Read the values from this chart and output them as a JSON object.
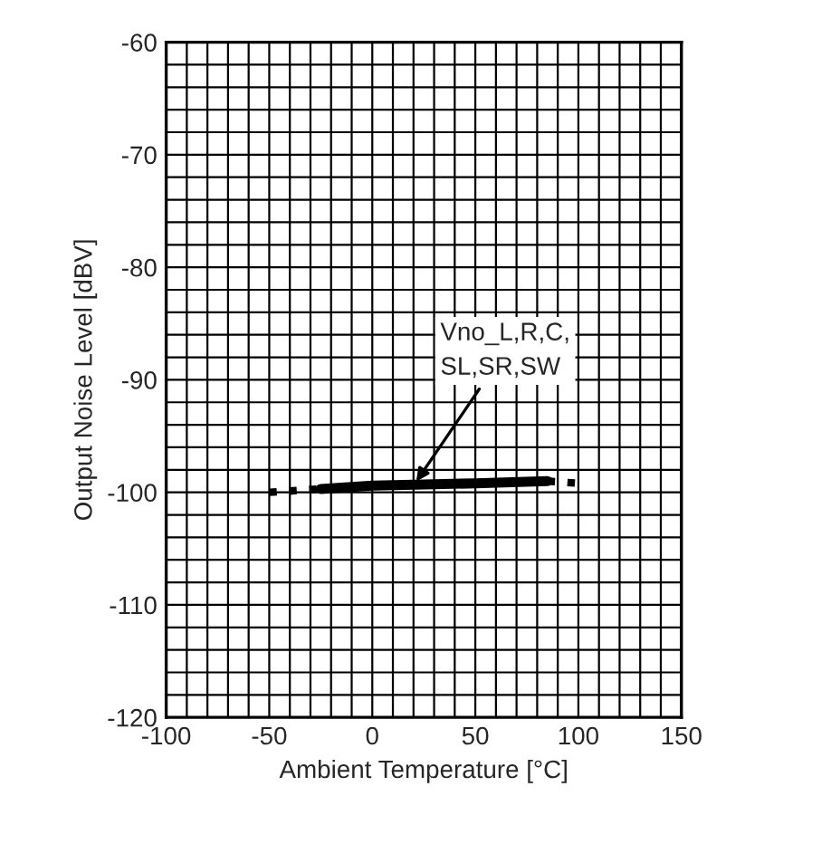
{
  "chart_data": {
    "type": "line",
    "xlabel": "Ambient Temperature [°C]",
    "ylabel": "Output Noise Level [dBV]",
    "xlim": [
      -100,
      150
    ],
    "ylim": [
      -120,
      -60
    ],
    "xticks": [
      -100,
      -50,
      0,
      50,
      100,
      150
    ],
    "yticks": [
      -120,
      -110,
      -100,
      -90,
      -80,
      -70,
      -60
    ],
    "grid": true,
    "color": "#000000",
    "series": [
      {
        "x": [
          -25,
          0,
          25,
          50,
          85
        ],
        "values": [
          -99.7,
          -99.4,
          -99.3,
          -99.2,
          -99.0
        ],
        "line_style": "solid"
      },
      {
        "x": [
          -50,
          -25
        ],
        "values": [
          -100,
          -99.7
        ],
        "line_style": "dotted"
      },
      {
        "x": [
          85,
          100
        ],
        "values": [
          -99.0,
          -99.2
        ],
        "line_style": "dotted"
      }
    ],
    "annotations": [
      {
        "text": "Vno_L,R,C,\nSL,SR,SW",
        "x": 20,
        "y": -99.4
      }
    ]
  }
}
